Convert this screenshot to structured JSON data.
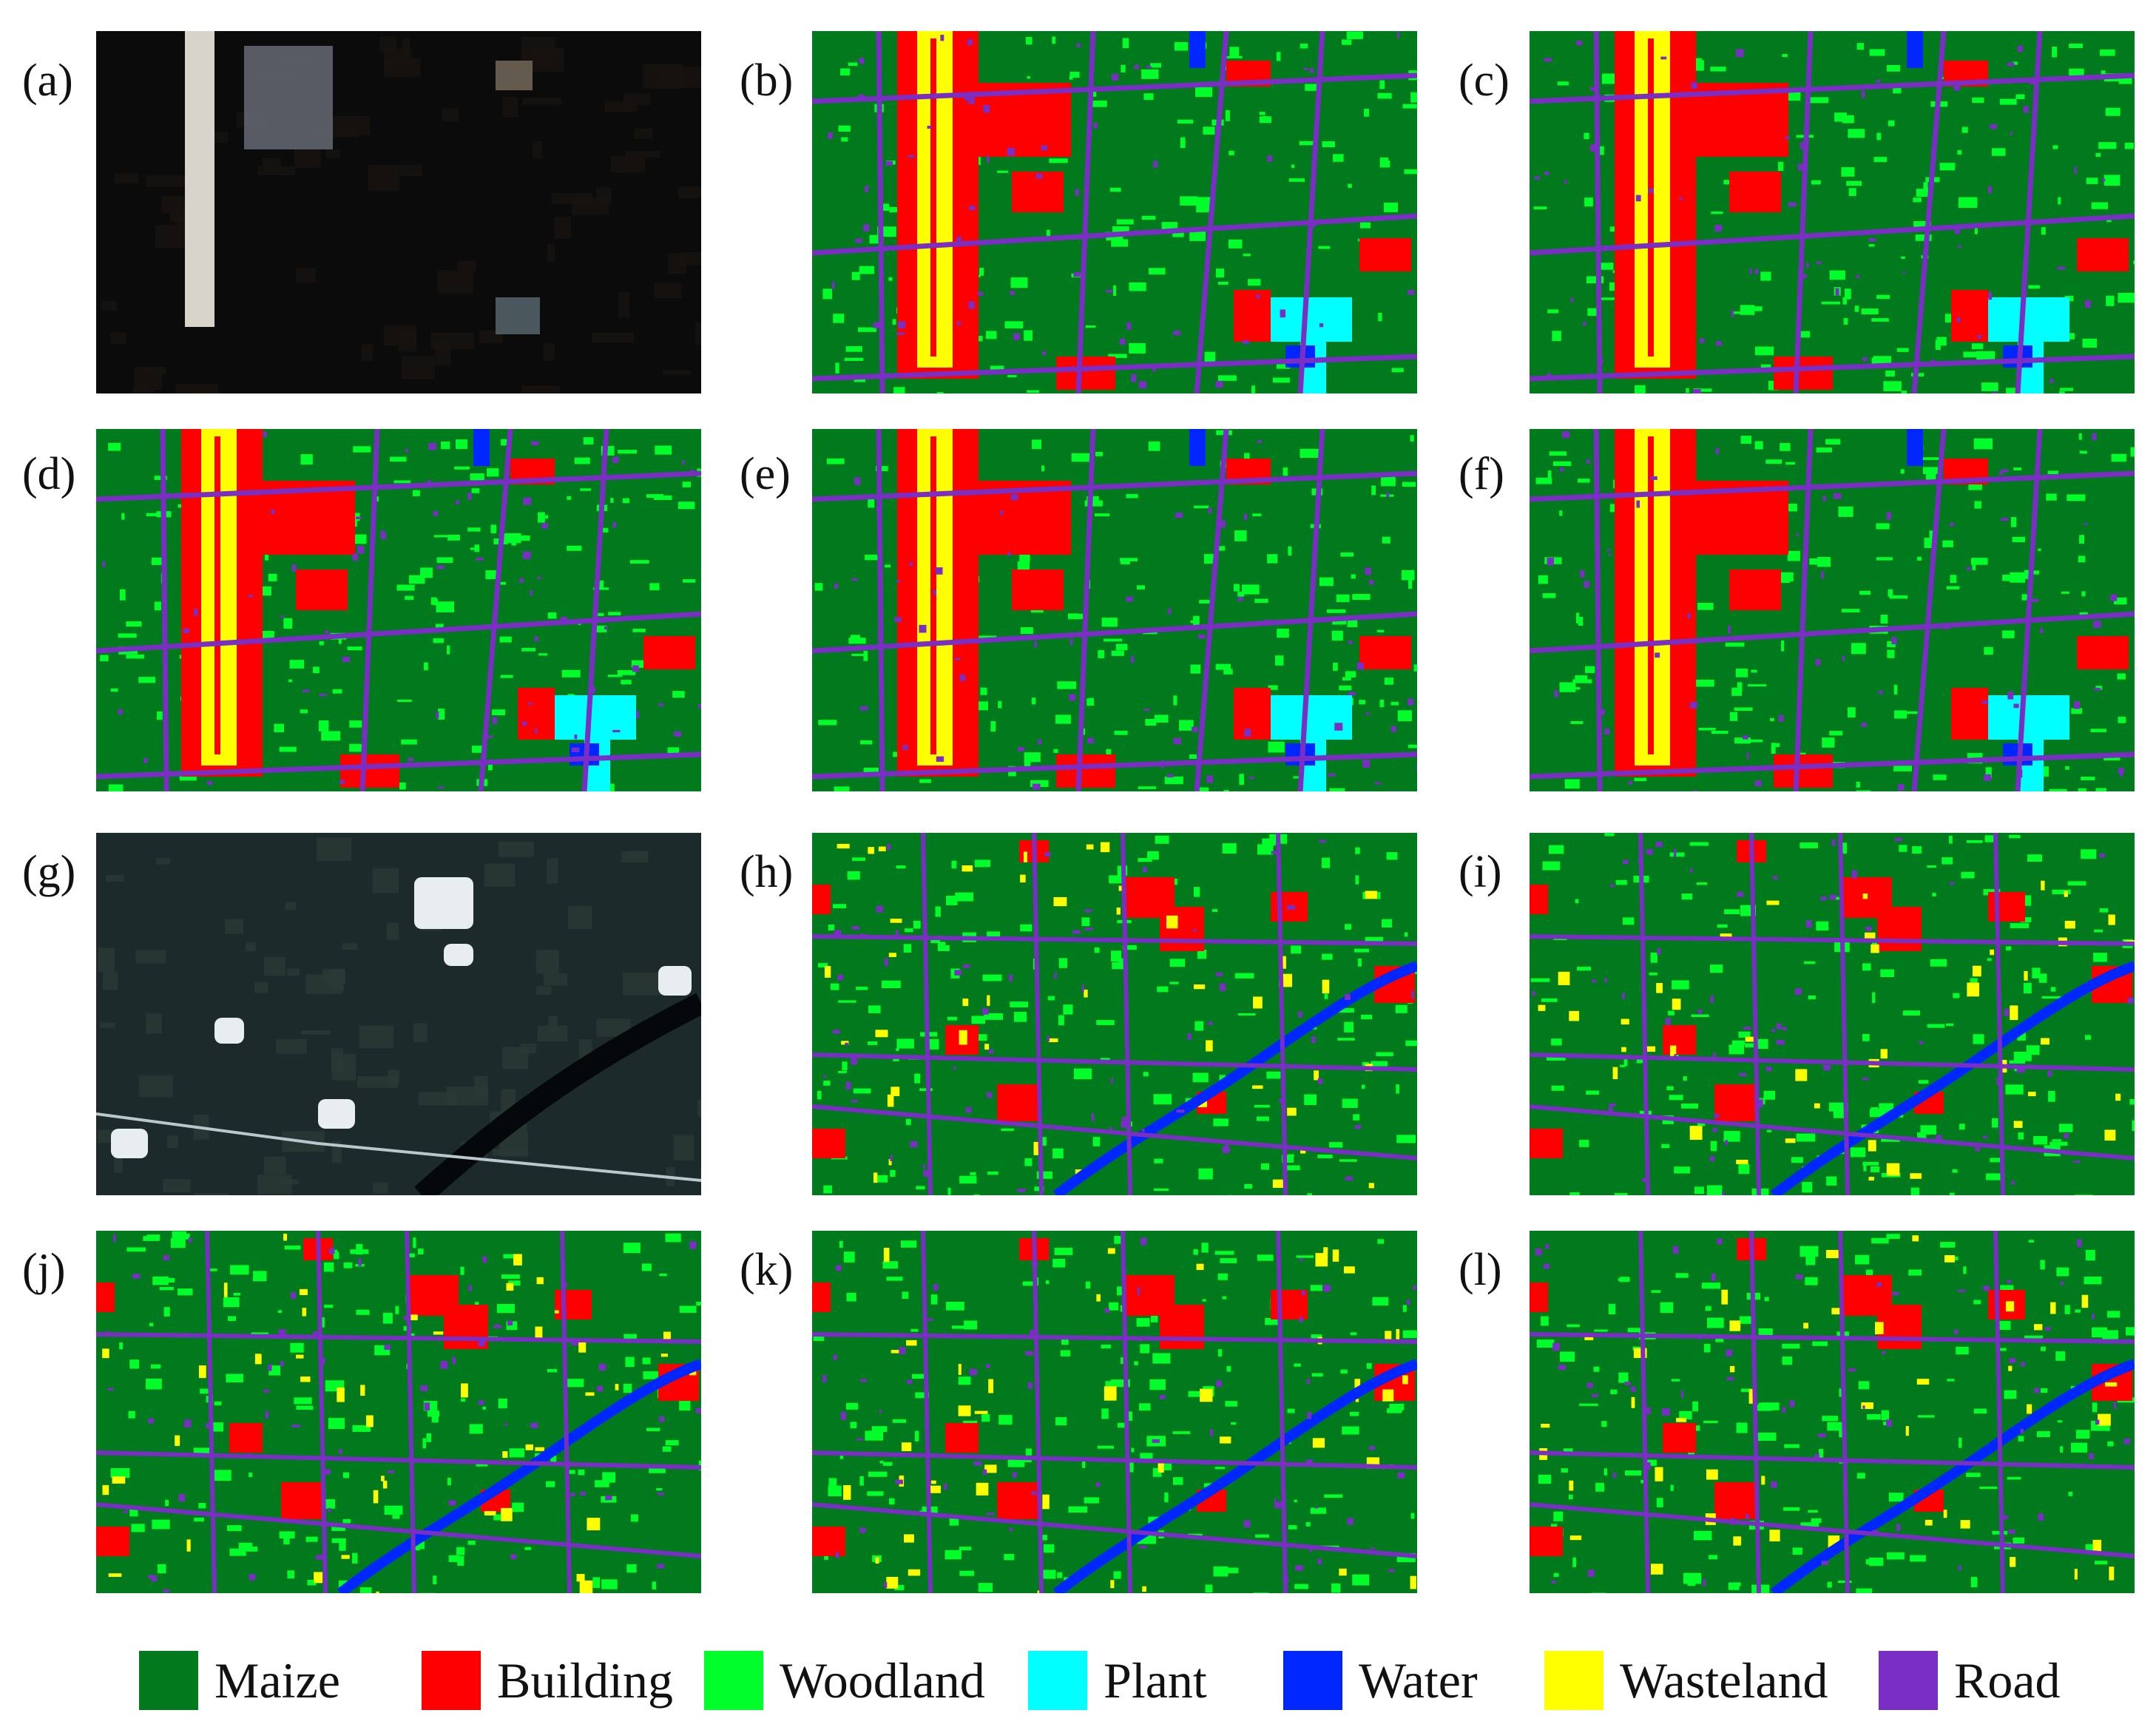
{
  "panels": [
    {
      "label": "(a)",
      "kind": "satellite",
      "scene": 1
    },
    {
      "label": "(b)",
      "kind": "map",
      "scene": 1
    },
    {
      "label": "(c)",
      "kind": "map",
      "scene": 1
    },
    {
      "label": "(d)",
      "kind": "map",
      "scene": 1
    },
    {
      "label": "(e)",
      "kind": "map",
      "scene": 1
    },
    {
      "label": "(f)",
      "kind": "map",
      "scene": 1
    },
    {
      "label": "(g)",
      "kind": "satellite",
      "scene": 2
    },
    {
      "label": "(h)",
      "kind": "map",
      "scene": 2
    },
    {
      "label": "(i)",
      "kind": "map",
      "scene": 2
    },
    {
      "label": "(j)",
      "kind": "map",
      "scene": 2
    },
    {
      "label": "(k)",
      "kind": "map",
      "scene": 2
    },
    {
      "label": "(l)",
      "kind": "map",
      "scene": 2
    }
  ],
  "legend": [
    {
      "label": "Maize",
      "color": "#007a1c"
    },
    {
      "label": "Building",
      "color": "#ff0000"
    },
    {
      "label": "Woodland",
      "color": "#00ff2a"
    },
    {
      "label": "Plant",
      "color": "#00ffff"
    },
    {
      "label": "Water",
      "color": "#0026ff"
    },
    {
      "label": "Wasteland",
      "color": "#ffff00"
    },
    {
      "label": "Road",
      "color": "#7a2ec4"
    }
  ]
}
